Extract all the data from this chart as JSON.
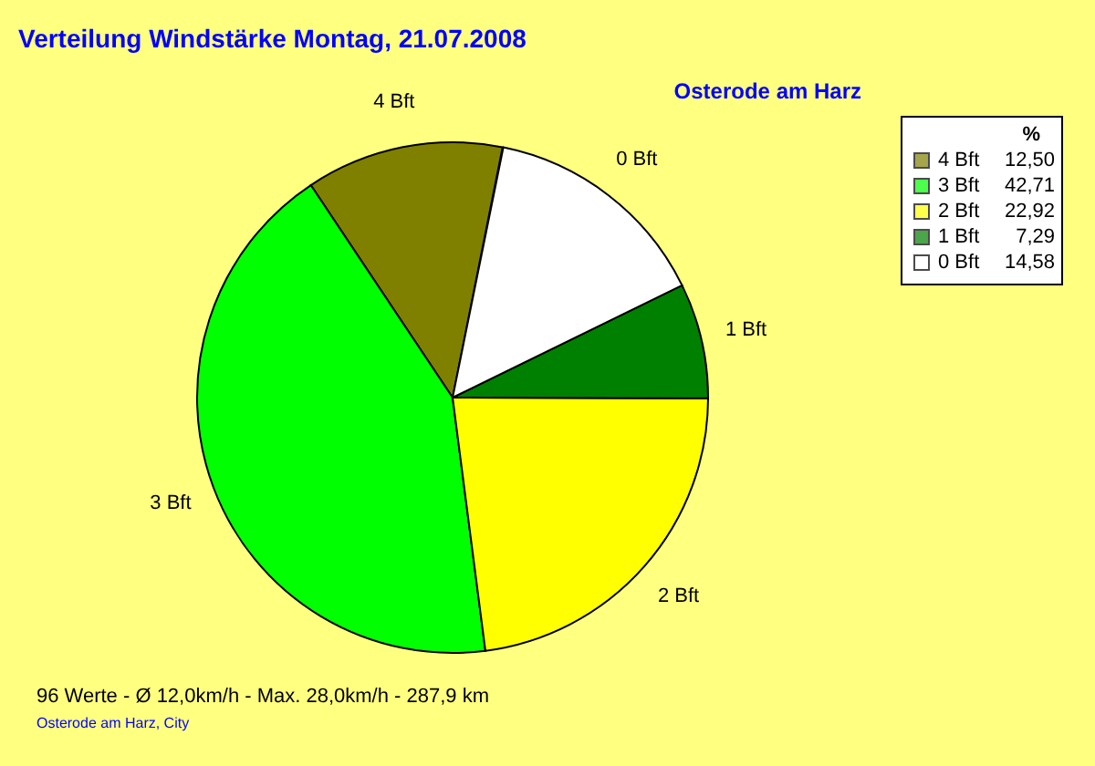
{
  "chart_data": {
    "type": "pie",
    "title": "Verteilung Windstärke  Montag, 21.07.2008",
    "subtitle": "Osterode am Harz",
    "legend_title": "%",
    "legend": "top right",
    "categories": [
      "4 Bft",
      "3 Bft",
      "2 Bft",
      "1 Bft",
      "0 Bft"
    ],
    "values": [
      12.5,
      42.71,
      22.92,
      7.29,
      14.58
    ],
    "value_labels": [
      "12,50",
      "42,71",
      "22,92",
      "7,29",
      "14,58"
    ],
    "colors": [
      "#808000",
      "#00ff00",
      "#ffff00",
      "#008000",
      "#ffffff"
    ],
    "annotations": [
      "96 Werte   -   Ø 12,0km/h  -  Max. 28,0km/h  -   287,9 km",
      "Osterode am Harz, City"
    ]
  }
}
